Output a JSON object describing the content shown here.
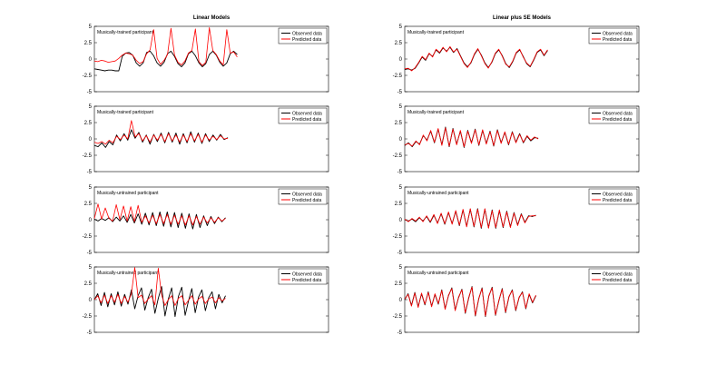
{
  "column_titles": [
    "Linear Models",
    "Linear plus SE Models"
  ],
  "legend_labels": [
    "Observed data",
    "Predicted data"
  ],
  "colors": {
    "observed": "#000000",
    "predicted": "#ff0000"
  },
  "chart_data": [
    {
      "type": "line",
      "title": "Linear Models",
      "subtitle": "Musically-trained participant",
      "legend": "top-right",
      "ylim": [
        -5,
        5
      ],
      "yticks": [
        "5",
        "2.5",
        "0",
        "-2.5",
        "-5"
      ],
      "series": [
        {
          "name": "Observed data",
          "values": [
            -1.5,
            -1.6,
            -1.7,
            -1.8,
            -1.7,
            -1.7,
            -1.8,
            -1.8,
            0.4,
            0.9,
            1.0,
            0.6,
            -0.6,
            -1.1,
            -0.6,
            1.0,
            1.2,
            0.5,
            -0.6,
            -1.1,
            -0.5,
            0.8,
            1.2,
            0.4,
            -0.7,
            -1.2,
            -0.6,
            0.8,
            1.2,
            0.5,
            -0.6,
            -1.2,
            -0.7,
            0.7,
            1.2,
            0.6,
            -0.5,
            -1.1,
            -0.6,
            0.8,
            1.2,
            0.7
          ]
        },
        {
          "name": "Predicted data",
          "values": [
            -0.3,
            -0.4,
            -0.2,
            -0.3,
            -0.5,
            -0.4,
            -0.3,
            0.1,
            0.6,
            0.9,
            0.8,
            0.6,
            -0.2,
            -0.7,
            -0.4,
            0.8,
            1.4,
            4.5,
            0.1,
            -0.8,
            -0.2,
            0.7,
            4.7,
            0.6,
            -0.5,
            -0.9,
            -0.3,
            0.9,
            1.3,
            4.6,
            -0.4,
            -1.0,
            -0.5,
            4.8,
            1.3,
            0.7,
            -0.3,
            -0.9,
            4.5,
            0.9,
            1.1,
            0.3
          ]
        }
      ]
    },
    {
      "type": "line",
      "title": "Linear Models",
      "subtitle": "Musically-trained participant",
      "legend": "top-right",
      "ylim": [
        -5,
        5
      ],
      "yticks": [
        "5",
        "2.5",
        "0",
        "-2.5",
        "-5"
      ],
      "series": [
        {
          "name": "Observed data",
          "values": [
            -1.0,
            -1.2,
            -0.6,
            -1.3,
            -0.4,
            -0.9,
            0.6,
            -0.3,
            0.8,
            -0.2,
            1.4,
            0.1,
            1.0,
            -0.5,
            0.6,
            -0.8,
            0.7,
            -0.4,
            0.9,
            -0.6,
            1.0,
            -0.5,
            0.9,
            -0.8,
            0.8,
            -0.6,
            1.1,
            -0.5,
            0.9,
            -0.7,
            0.8,
            -0.4,
            0.6,
            -0.2,
            0.7,
            -0.1,
            0.2
          ]
        },
        {
          "name": "Predicted data",
          "values": [
            -0.5,
            -0.7,
            -0.4,
            -0.8,
            -0.2,
            -0.6,
            0.4,
            -0.1,
            0.6,
            0.0,
            2.8,
            0.3,
            0.8,
            -0.3,
            0.5,
            -0.5,
            0.6,
            -0.2,
            0.7,
            -0.4,
            0.8,
            -0.3,
            0.6,
            -0.5,
            0.6,
            -0.4,
            0.8,
            -0.3,
            0.7,
            -0.5,
            0.6,
            -0.2,
            0.4,
            -0.1,
            0.5,
            0.0,
            0.1
          ]
        }
      ]
    },
    {
      "type": "line",
      "title": "Linear Models",
      "subtitle": "Musically-untrained participant",
      "legend": "top-right",
      "ylim": [
        -5,
        5
      ],
      "yticks": [
        "5",
        "2.5",
        "0",
        "-2.5",
        "-5"
      ],
      "series": [
        {
          "name": "Observed data",
          "values": [
            0.1,
            -0.2,
            0.2,
            -0.1,
            0.3,
            -0.3,
            0.4,
            -0.2,
            0.6,
            -0.4,
            0.8,
            -0.5,
            0.9,
            -0.7,
            1.0,
            -0.8,
            1.1,
            -0.9,
            1.2,
            -1.0,
            1.2,
            -1.1,
            1.1,
            -1.2,
            1.0,
            -1.3,
            0.9,
            -1.4,
            0.8,
            -1.2,
            0.6,
            -0.9,
            0.5,
            -0.6,
            0.4,
            -0.3,
            0.3
          ]
        },
        {
          "name": "Predicted data",
          "values": [
            0.2,
            2.4,
            0.1,
            1.8,
            0.2,
            -0.2,
            2.3,
            0.0,
            2.1,
            -0.2,
            2.0,
            -0.3,
            2.2,
            -0.4,
            0.6,
            -0.5,
            0.7,
            -0.6,
            0.8,
            -0.6,
            0.8,
            -0.7,
            0.7,
            -0.7,
            0.6,
            -0.8,
            0.6,
            -0.8,
            0.5,
            -0.7,
            0.4,
            -0.5,
            0.3,
            -0.4,
            0.3,
            -0.2,
            0.2
          ]
        }
      ]
    },
    {
      "type": "line",
      "title": "Linear Models",
      "subtitle": "Musically-untrained participant",
      "legend": "top-right",
      "ylim": [
        -5,
        5
      ],
      "yticks": [
        "5",
        "2.5",
        "0",
        "-2.5",
        "-5"
      ],
      "series": [
        {
          "name": "Observed data",
          "values": [
            0.0,
            0.9,
            -0.9,
            1.1,
            -1.1,
            0.9,
            -0.8,
            1.2,
            -1.0,
            0.8,
            -0.7,
            1.5,
            -1.4,
            0.6,
            1.8,
            -1.6,
            0.3,
            1.6,
            -2.1,
            0.2,
            2.0,
            -2.5,
            0.1,
            1.8,
            -2.6,
            0.5,
            1.9,
            -2.4,
            -0.2,
            1.7,
            -2.0,
            0.4,
            1.5,
            -1.7,
            0.3,
            1.2,
            -1.4,
            0.8,
            -0.5,
            0.6
          ]
        },
        {
          "name": "Predicted data",
          "values": [
            0.0,
            0.6,
            -0.5,
            0.7,
            -0.6,
            0.6,
            -0.4,
            0.8,
            -0.6,
            0.5,
            -0.4,
            0.9,
            4.9,
            0.3,
            0.7,
            -0.6,
            0.1,
            0.6,
            -0.8,
            4.8,
            0.7,
            -0.9,
            0.0,
            0.6,
            -0.9,
            0.2,
            0.6,
            -0.8,
            -0.1,
            0.6,
            -0.7,
            0.1,
            0.5,
            -0.6,
            0.1,
            0.4,
            -0.5,
            0.3,
            -0.2,
            0.2
          ]
        }
      ]
    },
    {
      "type": "line",
      "title": "Linear plus SE Models",
      "subtitle": "Musically-trained participant",
      "legend": "top-right",
      "ylim": [
        -5,
        5
      ],
      "yticks": [
        "5",
        "2.5",
        "0",
        "-2.5",
        "-5"
      ],
      "series": [
        {
          "name": "Observed data",
          "values": [
            -1.6,
            -1.5,
            -1.7,
            -1.4,
            -0.6,
            0.3,
            -0.2,
            0.8,
            0.4,
            1.4,
            0.9,
            1.7,
            1.2,
            1.8,
            1.0,
            1.6,
            0.5,
            -0.6,
            -1.2,
            -0.6,
            0.7,
            1.5,
            0.6,
            -0.6,
            -1.3,
            -0.5,
            0.8,
            1.4,
            0.5,
            -0.7,
            -1.3,
            -0.4,
            0.9,
            1.4,
            0.4,
            -0.7,
            -1.2,
            -0.2,
            1.0,
            1.4,
            0.5,
            1.3
          ]
        },
        {
          "name": "Predicted data",
          "values": [
            -1.5,
            -1.4,
            -1.8,
            -1.3,
            -0.5,
            0.4,
            -0.1,
            0.9,
            0.3,
            1.5,
            1.0,
            1.8,
            1.1,
            1.9,
            1.1,
            1.5,
            0.4,
            -0.7,
            -1.3,
            -0.5,
            0.8,
            1.6,
            0.5,
            -0.7,
            -1.4,
            -0.4,
            0.9,
            1.5,
            0.4,
            -0.8,
            -1.2,
            -0.3,
            1.0,
            1.5,
            0.3,
            -0.6,
            -1.1,
            -0.1,
            1.1,
            1.5,
            0.6,
            1.4
          ]
        }
      ]
    },
    {
      "type": "line",
      "title": "Linear plus SE Models",
      "subtitle": "Musically-trained participant",
      "legend": "top-right",
      "ylim": [
        -5,
        5
      ],
      "yticks": [
        "5",
        "2.5",
        "0",
        "-2.5",
        "-5"
      ],
      "series": [
        {
          "name": "Observed data",
          "values": [
            -1.0,
            -0.6,
            -1.2,
            -0.4,
            -0.8,
            0.5,
            -0.2,
            1.2,
            -0.6,
            1.5,
            -0.9,
            1.8,
            -1.2,
            1.6,
            -0.8,
            1.2,
            -1.3,
            1.3,
            -0.6,
            1.5,
            -1.0,
            1.3,
            -0.7,
            1.2,
            -1.1,
            1.4,
            -0.6,
            1.0,
            -0.9,
            1.1,
            -0.5,
            0.8,
            -0.6,
            0.4,
            -0.3,
            0.2,
            0.1
          ]
        },
        {
          "name": "Predicted data",
          "values": [
            -0.9,
            -0.7,
            -1.1,
            -0.3,
            -0.9,
            0.6,
            -0.3,
            1.3,
            -0.5,
            1.6,
            -1.0,
            1.7,
            -1.1,
            1.5,
            -0.9,
            1.3,
            -1.2,
            1.2,
            -0.7,
            1.4,
            -0.9,
            1.4,
            -0.8,
            1.1,
            -1.0,
            1.3,
            -0.7,
            1.1,
            -0.8,
            1.0,
            -0.6,
            0.7,
            -0.5,
            0.5,
            -0.2,
            0.3,
            0.0
          ]
        }
      ]
    },
    {
      "type": "line",
      "title": "Linear plus SE Models",
      "subtitle": "Musically-untrained participant",
      "legend": "top-right",
      "ylim": [
        -5,
        5
      ],
      "yticks": [
        "5",
        "2.5",
        "0",
        "-2.5",
        "-5"
      ],
      "series": [
        {
          "name": "Observed data",
          "values": [
            0.0,
            -0.2,
            0.1,
            -0.3,
            0.3,
            -0.2,
            0.5,
            -0.4,
            0.7,
            -0.5,
            0.9,
            -0.7,
            1.1,
            -0.6,
            1.3,
            -0.9,
            1.5,
            -1.0,
            1.6,
            -1.1,
            1.7,
            -1.3,
            1.6,
            -1.2,
            1.5,
            -1.3,
            1.4,
            -1.2,
            1.3,
            -1.1,
            1.1,
            -0.8,
            0.9,
            -0.4,
            0.6,
            0.5,
            0.7
          ]
        },
        {
          "name": "Predicted data",
          "values": [
            0.1,
            -0.3,
            0.2,
            -0.2,
            0.4,
            -0.3,
            0.6,
            -0.3,
            0.8,
            -0.6,
            1.0,
            -0.6,
            1.2,
            -0.7,
            1.4,
            -0.8,
            1.6,
            -1.1,
            1.7,
            -1.0,
            1.6,
            -1.2,
            1.7,
            -1.3,
            1.4,
            -1.2,
            1.5,
            -1.1,
            1.2,
            -1.2,
            1.0,
            -0.9,
            0.8,
            -0.5,
            0.5,
            0.6,
            0.6
          ]
        }
      ]
    },
    {
      "type": "line",
      "title": "Linear plus SE Models",
      "subtitle": "Musically-untrained participant",
      "legend": "top-right",
      "ylim": [
        -5,
        5
      ],
      "yticks": [
        "5",
        "2.5",
        "0",
        "-2.5",
        "-5"
      ],
      "series": [
        {
          "name": "Observed data",
          "values": [
            0.0,
            0.9,
            -0.9,
            1.1,
            -1.1,
            0.9,
            -0.8,
            1.2,
            -1.0,
            0.8,
            -0.7,
            1.5,
            -1.4,
            0.6,
            1.8,
            -1.6,
            0.3,
            1.6,
            -2.1,
            0.2,
            2.0,
            -2.5,
            0.1,
            1.8,
            -2.6,
            0.5,
            1.9,
            -2.4,
            -0.2,
            1.7,
            -2.0,
            0.4,
            1.5,
            -1.7,
            0.3,
            1.2,
            -1.4,
            0.8,
            -0.5,
            0.6
          ]
        },
        {
          "name": "Predicted data",
          "values": [
            0.1,
            0.8,
            -1.0,
            1.0,
            -1.2,
            1.0,
            -0.7,
            1.1,
            -1.1,
            0.9,
            -0.6,
            1.4,
            -1.5,
            0.7,
            1.7,
            -1.7,
            0.4,
            1.5,
            -2.0,
            0.3,
            1.9,
            -2.4,
            0.2,
            1.7,
            -2.5,
            0.6,
            1.8,
            -2.3,
            -0.1,
            1.6,
            -1.9,
            0.5,
            1.4,
            -1.6,
            0.4,
            1.1,
            -1.3,
            0.9,
            -0.4,
            0.7
          ]
        }
      ]
    }
  ]
}
